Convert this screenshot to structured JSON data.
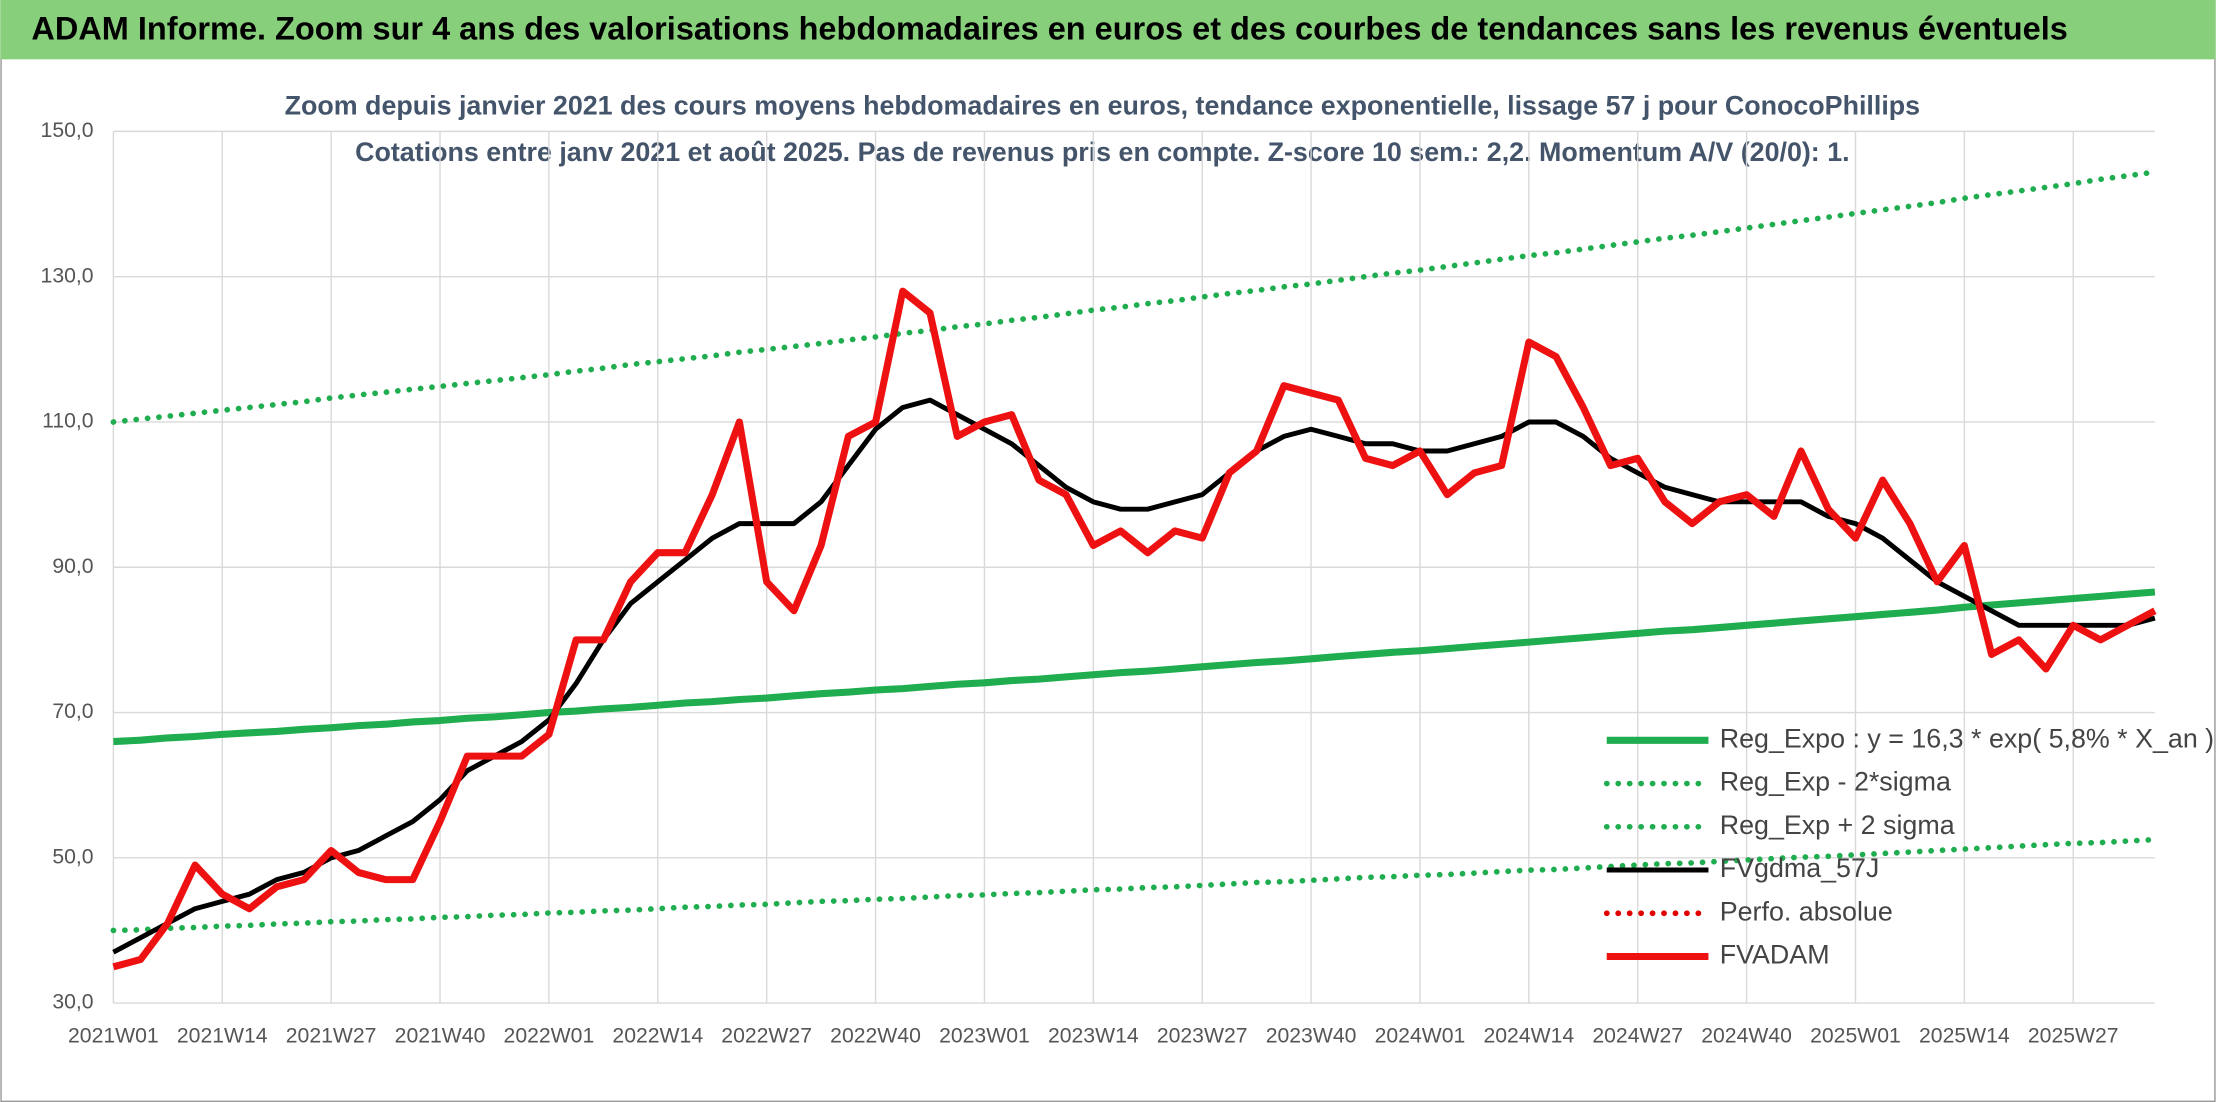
{
  "chart_data": {
    "type": "line",
    "title": "ADAM Informe. Zoom sur 4 ans des valorisations hebdomadaires en euros et des courbes de tendances sans les revenus éventuels",
    "subtitle": [
      "Zoom depuis janvier 2021 des cours moyens hebdomadaires en euros, tendance exponentielle, lissage 57 j pour ConocoPhillips",
      "Cotations entre janv 2021 et août 2025. Pas de revenus pris en compte. Z-score 10 sem.: 2,2. Momentum A/V (20/0): 1."
    ],
    "categories": [
      "2021W01",
      null,
      null,
      null,
      "2021W14",
      null,
      null,
      null,
      "2021W27",
      null,
      null,
      null,
      "2021W40",
      null,
      null,
      null,
      "2022W01",
      null,
      null,
      null,
      "2022W14",
      null,
      null,
      null,
      "2022W27",
      null,
      null,
      null,
      "2022W40",
      null,
      null,
      null,
      "2023W01",
      null,
      null,
      null,
      "2023W14",
      null,
      null,
      null,
      "2023W27",
      null,
      null,
      null,
      "2023W40",
      null,
      null,
      null,
      "2024W01",
      null,
      null,
      null,
      "2024W14",
      null,
      null,
      null,
      "2024W27",
      null,
      null,
      null,
      "2024W40",
      null,
      null,
      null,
      "2025W01",
      null,
      null,
      null,
      "2025W14",
      null,
      null,
      null,
      "2025W27",
      null,
      null,
      null
    ],
    "ylim": [
      30,
      150
    ],
    "yticks": [
      {
        "value": 30,
        "label": "30,0"
      },
      {
        "value": 50,
        "label": "50,0"
      },
      {
        "value": 70,
        "label": "70,0"
      },
      {
        "value": 90,
        "label": "90,0"
      },
      {
        "value": 110,
        "label": "110,0"
      },
      {
        "value": 130,
        "label": "130,0"
      },
      {
        "value": 150,
        "label": "150,0"
      }
    ],
    "grid": true,
    "legend": "lower right",
    "series": [
      {
        "name": "Reg_Expo : y = 16,3 * exp( 5,8% *  X_an )",
        "color": "#1fad4f",
        "style": "solid",
        "values": [
          66,
          66.2,
          66.5,
          66.7,
          67.0,
          67.2,
          67.4,
          67.7,
          67.9,
          68.2,
          68.4,
          68.7,
          68.9,
          69.2,
          69.4,
          69.7,
          70.0,
          70.2,
          70.5,
          70.7,
          71.0,
          71.3,
          71.5,
          71.8,
          72.0,
          72.3,
          72.6,
          72.8,
          73.1,
          73.3,
          73.6,
          73.9,
          74.1,
          74.4,
          74.6,
          74.9,
          75.2,
          75.5,
          75.7,
          76.0,
          76.3,
          76.6,
          76.9,
          77.1,
          77.4,
          77.7,
          78.0,
          78.3,
          78.5,
          78.8,
          79.1,
          79.4,
          79.7,
          80.0,
          80.3,
          80.6,
          80.9,
          81.2,
          81.4,
          81.7,
          82.0,
          82.3,
          82.6,
          82.9,
          83.2,
          83.5,
          83.8,
          84.1,
          84.5,
          84.8,
          85.1,
          85.4,
          85.7,
          86.0,
          86.3,
          86.6
        ]
      },
      {
        "name": "Reg_Exp - 2*sigma",
        "color": "#1fad4f",
        "style": "dotted",
        "values": [
          40,
          40.1,
          40.3,
          40.4,
          40.6,
          40.7,
          40.9,
          41.0,
          41.2,
          41.3,
          41.5,
          41.6,
          41.8,
          41.9,
          42.1,
          42.2,
          42.4,
          42.5,
          42.7,
          42.8,
          43.0,
          43.2,
          43.3,
          43.5,
          43.6,
          43.8,
          44.0,
          44.1,
          44.3,
          44.4,
          44.6,
          44.8,
          44.9,
          45.1,
          45.2,
          45.4,
          45.6,
          45.7,
          45.9,
          46.0,
          46.2,
          46.4,
          46.6,
          46.7,
          46.9,
          47.1,
          47.3,
          47.4,
          47.6,
          47.7,
          47.9,
          48.1,
          48.3,
          48.4,
          48.6,
          48.8,
          49.0,
          49.2,
          49.3,
          49.5,
          49.7,
          49.9,
          50.1,
          50.2,
          50.4,
          50.6,
          50.8,
          51.0,
          51.2,
          51.4,
          51.6,
          51.8,
          52.0,
          52.1,
          52.3,
          52.5
        ]
      },
      {
        "name": "Reg_Exp + 2 sigma",
        "color": "#1fad4f",
        "style": "dotted",
        "values": [
          110,
          110.4,
          110.8,
          111.2,
          111.6,
          112.0,
          112.4,
          112.8,
          113.3,
          113.7,
          114.1,
          114.5,
          114.9,
          115.3,
          115.7,
          116.1,
          116.5,
          117.0,
          117.4,
          117.9,
          118.3,
          118.7,
          119.1,
          119.6,
          120.0,
          120.4,
          120.8,
          121.3,
          121.7,
          122.2,
          122.6,
          123.1,
          123.5,
          124.0,
          124.4,
          124.9,
          125.4,
          125.8,
          126.3,
          126.7,
          127.2,
          127.7,
          128.1,
          128.6,
          129.0,
          129.5,
          130.0,
          130.5,
          130.9,
          131.4,
          131.9,
          132.4,
          132.9,
          133.3,
          133.8,
          134.3,
          134.8,
          135.3,
          135.7,
          136.2,
          136.7,
          137.2,
          137.7,
          138.2,
          138.7,
          139.2,
          139.7,
          140.2,
          140.8,
          141.3,
          141.8,
          142.3,
          142.8,
          143.4,
          143.9,
          144.4
        ]
      },
      {
        "name": "FVgdma_57J",
        "color": "#000000",
        "style": "solid",
        "values": [
          37,
          39,
          41,
          43,
          44,
          45,
          47,
          48,
          50,
          51,
          53,
          55,
          58,
          62,
          64,
          66,
          69,
          74,
          80,
          85,
          88,
          91,
          94,
          96,
          96,
          96,
          99,
          104,
          109,
          112,
          113,
          111,
          109,
          107,
          104,
          101,
          99,
          98,
          98,
          99,
          100,
          103,
          106,
          108,
          109,
          108,
          107,
          107,
          106,
          106,
          107,
          108,
          110,
          110,
          108,
          105,
          103,
          101,
          100,
          99,
          99,
          99,
          99,
          97,
          96,
          94,
          91,
          88,
          86,
          84,
          82,
          82,
          82,
          82,
          82,
          83
        ]
      },
      {
        "name": "Perfo. absolue",
        "color": "#e00000",
        "style": "dotted",
        "values": [
          null,
          null,
          null,
          null,
          null,
          null,
          null,
          null,
          null,
          null,
          null,
          null,
          null,
          null,
          null,
          null,
          null,
          null,
          null,
          null,
          null,
          null,
          null,
          null,
          null,
          null,
          null,
          null,
          null,
          null,
          null,
          null,
          null,
          null,
          null,
          null,
          null,
          null,
          null,
          null,
          null,
          null,
          null,
          null,
          null,
          null,
          null,
          null,
          null,
          null,
          null,
          null,
          null,
          null,
          null,
          null,
          null,
          null,
          null,
          null,
          null,
          null,
          null,
          null,
          null,
          null,
          null,
          null,
          null,
          null,
          null,
          null,
          null,
          null,
          null,
          null
        ]
      },
      {
        "name": "FVADAM",
        "color": "#ee1111",
        "style": "solid",
        "values": [
          35,
          36,
          41,
          49,
          45,
          43,
          46,
          47,
          51,
          48,
          47,
          47,
          55,
          64,
          64,
          64,
          67,
          80,
          80,
          88,
          92,
          92,
          100,
          110,
          88,
          84,
          93,
          108,
          110,
          128,
          125,
          108,
          110,
          111,
          102,
          100,
          93,
          95,
          92,
          95,
          94,
          103,
          106,
          115,
          114,
          113,
          105,
          104,
          106,
          100,
          103,
          104,
          121,
          119,
          112,
          104,
          105,
          99,
          96,
          99,
          100,
          97,
          106,
          98,
          94,
          102,
          96,
          88,
          93,
          78,
          80,
          76,
          82,
          80,
          82,
          84
        ]
      }
    ]
  }
}
